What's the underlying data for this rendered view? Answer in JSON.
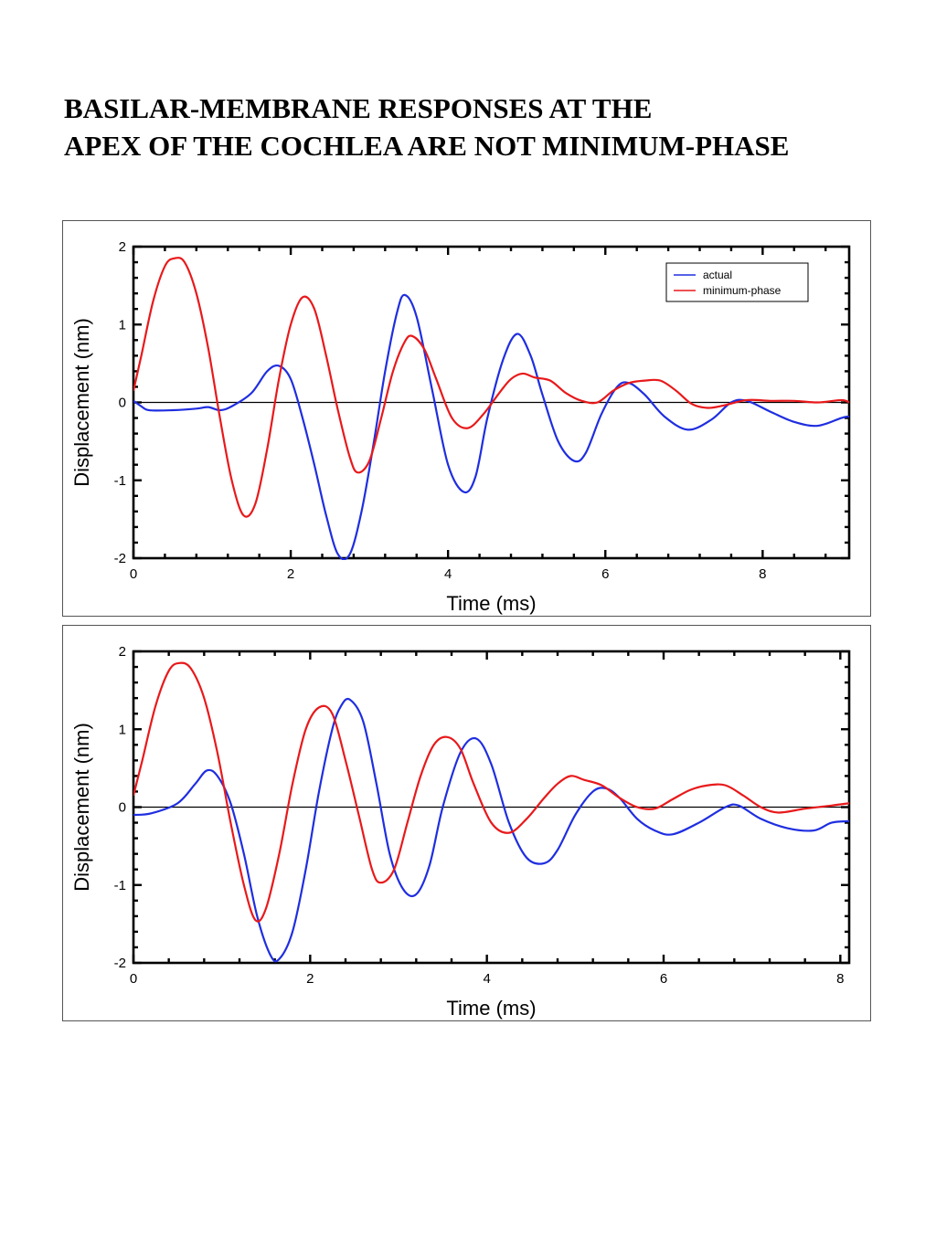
{
  "title": {
    "line1": "BASILAR-MEMBRANE RESPONSES AT THE",
    "line2": "APEX OF THE COCHLEA ARE NOT MINIMUM-PHASE"
  },
  "colors": {
    "actual": "#1f2ee0",
    "minimum_phase": "#e8191b",
    "axis": "#000000"
  },
  "chart_data": [
    {
      "type": "line",
      "xlabel": "Time (ms)",
      "ylabel": "Displacement (nm)",
      "xlim": [
        0,
        9.1
      ],
      "ylim": [
        -2,
        2
      ],
      "xticks": [
        0,
        2,
        4,
        6,
        8
      ],
      "yticks": [
        -2,
        -1,
        0,
        1,
        2
      ],
      "grid": false,
      "zero_line": true,
      "legend": {
        "position": "top-right",
        "entries": [
          "actual",
          "minimum-phase"
        ]
      },
      "series": [
        {
          "name": "actual",
          "color": "#1f2ee0",
          "x": [
            0,
            0.1,
            0.2,
            0.5,
            0.8,
            0.95,
            1.1,
            1.25,
            1.5,
            1.7,
            1.85,
            2.0,
            2.15,
            2.3,
            2.45,
            2.6,
            2.75,
            2.9,
            3.05,
            3.2,
            3.35,
            3.45,
            3.6,
            3.8,
            4.0,
            4.2,
            4.35,
            4.5,
            4.7,
            4.88,
            5.05,
            5.2,
            5.4,
            5.6,
            5.75,
            5.95,
            6.15,
            6.3,
            6.5,
            6.75,
            7.05,
            7.35,
            7.6,
            7.8,
            8.1,
            8.4,
            8.7,
            9.0,
            9.1
          ],
          "y": [
            0.02,
            -0.05,
            -0.1,
            -0.1,
            -0.08,
            -0.06,
            -0.1,
            -0.05,
            0.12,
            0.4,
            0.47,
            0.3,
            -0.2,
            -0.8,
            -1.45,
            -1.95,
            -1.95,
            -1.4,
            -0.55,
            0.4,
            1.15,
            1.38,
            1.1,
            0.15,
            -0.8,
            -1.15,
            -0.95,
            -0.2,
            0.55,
            0.88,
            0.6,
            0.1,
            -0.5,
            -0.75,
            -0.65,
            -0.15,
            0.2,
            0.25,
            0.1,
            -0.18,
            -0.35,
            -0.22,
            0.0,
            0.02,
            -0.12,
            -0.25,
            -0.3,
            -0.2,
            -0.18
          ]
        },
        {
          "name": "minimum-phase",
          "color": "#e8191b",
          "x": [
            0,
            0.1,
            0.25,
            0.4,
            0.52,
            0.65,
            0.8,
            0.95,
            1.1,
            1.25,
            1.4,
            1.55,
            1.7,
            1.85,
            2.0,
            2.15,
            2.3,
            2.45,
            2.6,
            2.75,
            2.85,
            3.0,
            3.15,
            3.3,
            3.45,
            3.55,
            3.7,
            3.85,
            4.05,
            4.25,
            4.45,
            4.65,
            4.8,
            4.95,
            5.1,
            5.3,
            5.5,
            5.7,
            5.9,
            6.1,
            6.3,
            6.5,
            6.7,
            6.9,
            7.1,
            7.3,
            7.5,
            7.8,
            8.1,
            8.4,
            8.7,
            9.0,
            9.1
          ],
          "y": [
            0.15,
            0.6,
            1.3,
            1.75,
            1.85,
            1.8,
            1.4,
            0.7,
            -0.2,
            -1.0,
            -1.45,
            -1.3,
            -0.6,
            0.3,
            1.0,
            1.35,
            1.2,
            0.6,
            -0.1,
            -0.7,
            -0.9,
            -0.75,
            -0.2,
            0.4,
            0.78,
            0.85,
            0.68,
            0.3,
            -0.2,
            -0.33,
            -0.15,
            0.12,
            0.3,
            0.37,
            0.32,
            0.28,
            0.12,
            0.02,
            0.0,
            0.15,
            0.25,
            0.28,
            0.28,
            0.15,
            -0.02,
            -0.07,
            -0.04,
            0.03,
            0.02,
            0.02,
            0.0,
            0.03,
            0.0
          ]
        }
      ]
    },
    {
      "type": "line",
      "xlabel": "Time (ms)",
      "ylabel": "Displacement (nm)",
      "xlim": [
        0,
        8.1
      ],
      "ylim": [
        -2,
        2
      ],
      "xticks": [
        0,
        2,
        4,
        6,
        8
      ],
      "yticks": [
        -2,
        -1,
        0,
        1,
        2
      ],
      "grid": false,
      "zero_line": true,
      "series": [
        {
          "name": "actual",
          "color": "#1f2ee0",
          "x": [
            0,
            0.2,
            0.5,
            0.7,
            0.83,
            0.95,
            1.1,
            1.25,
            1.4,
            1.55,
            1.65,
            1.8,
            1.95,
            2.1,
            2.25,
            2.35,
            2.45,
            2.6,
            2.75,
            2.9,
            3.05,
            3.2,
            3.35,
            3.5,
            3.7,
            3.88,
            4.05,
            4.25,
            4.45,
            4.65,
            4.8,
            5.0,
            5.2,
            5.35,
            5.5,
            5.7,
            5.9,
            6.1,
            6.4,
            6.7,
            6.85,
            7.1,
            7.4,
            7.7,
            7.9,
            8.1
          ],
          "y": [
            -0.1,
            -0.08,
            0.05,
            0.3,
            0.47,
            0.4,
            0.05,
            -0.6,
            -1.4,
            -1.9,
            -1.95,
            -1.6,
            -0.8,
            0.2,
            1.0,
            1.3,
            1.38,
            1.1,
            0.3,
            -0.6,
            -1.05,
            -1.12,
            -0.75,
            0.0,
            0.7,
            0.88,
            0.55,
            -0.2,
            -0.65,
            -0.72,
            -0.55,
            -0.1,
            0.2,
            0.24,
            0.12,
            -0.15,
            -0.3,
            -0.35,
            -0.2,
            0.0,
            0.02,
            -0.15,
            -0.27,
            -0.3,
            -0.2,
            -0.18
          ]
        },
        {
          "name": "minimum-phase",
          "color": "#e8191b",
          "x": [
            0,
            0.1,
            0.25,
            0.4,
            0.52,
            0.65,
            0.8,
            0.95,
            1.1,
            1.25,
            1.38,
            1.5,
            1.65,
            1.8,
            1.95,
            2.1,
            2.25,
            2.4,
            2.55,
            2.7,
            2.8,
            2.95,
            3.1,
            3.25,
            3.4,
            3.55,
            3.7,
            3.85,
            4.05,
            4.25,
            4.45,
            4.65,
            4.8,
            4.95,
            5.1,
            5.3,
            5.5,
            5.7,
            5.9,
            6.1,
            6.3,
            6.5,
            6.7,
            6.9,
            7.1,
            7.3,
            7.6,
            7.9,
            8.1
          ],
          "y": [
            0.15,
            0.6,
            1.3,
            1.75,
            1.85,
            1.78,
            1.4,
            0.7,
            -0.2,
            -1.0,
            -1.45,
            -1.3,
            -0.6,
            0.3,
            1.0,
            1.28,
            1.2,
            0.6,
            -0.1,
            -0.8,
            -0.97,
            -0.8,
            -0.2,
            0.4,
            0.8,
            0.9,
            0.75,
            0.3,
            -0.2,
            -0.33,
            -0.15,
            0.12,
            0.3,
            0.4,
            0.35,
            0.28,
            0.12,
            0.0,
            -0.02,
            0.1,
            0.22,
            0.28,
            0.28,
            0.15,
            0.0,
            -0.07,
            -0.02,
            0.02,
            0.05
          ]
        }
      ]
    }
  ]
}
